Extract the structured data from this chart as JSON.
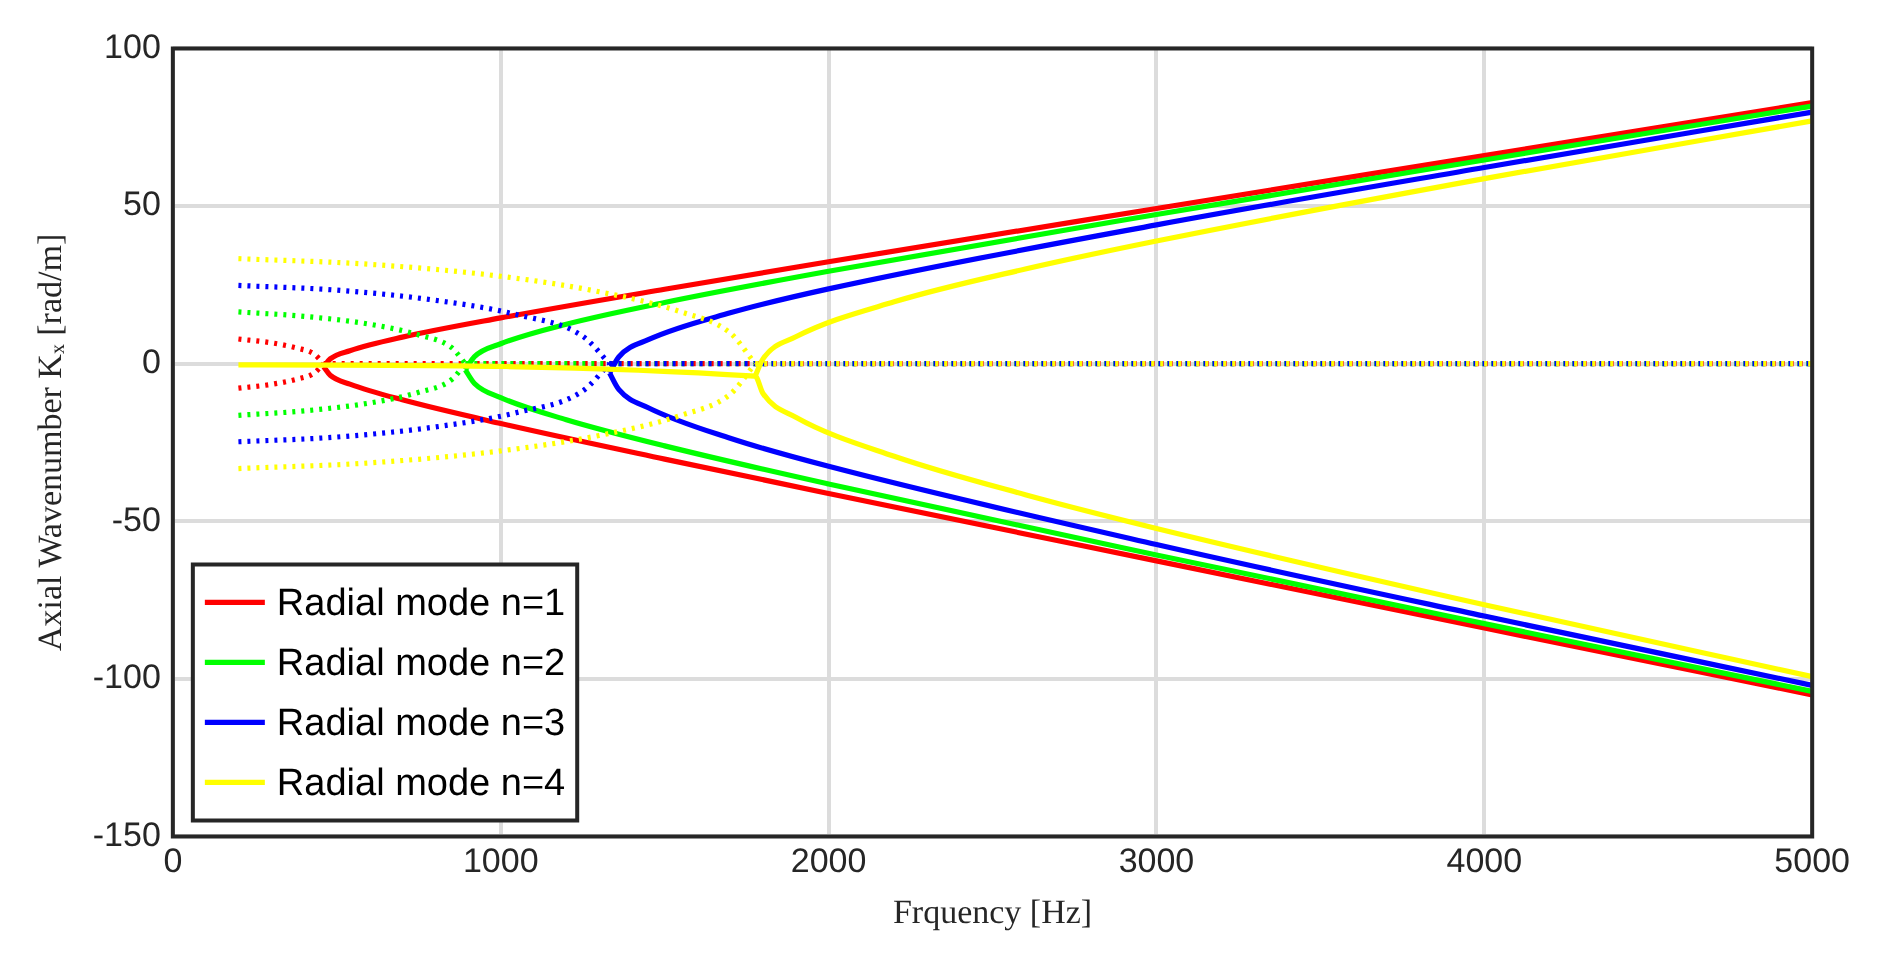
{
  "chart_data": {
    "type": "line",
    "xlabel": "Frquency [Hz]",
    "ylabel": "Axial Wavenumber Kₓ [rad/m]",
    "xlim": [
      0,
      5000
    ],
    "xticks": [
      0,
      1000,
      2000,
      3000,
      4000,
      5000
    ],
    "ylim": [
      -150,
      100
    ],
    "yticks": [
      -150,
      -100,
      -50,
      0,
      50,
      100
    ],
    "grid": true,
    "legend": "bottom left",
    "marker": "none",
    "series": [
      {
        "color": "#ff0000",
        "line_style": "dotted",
        "x": [
          200,
          300,
          380,
          430,
          460
        ],
        "values": [
          7.8,
          6.6,
          4.9,
          3.1,
          0
        ]
      },
      {
        "color": "#ff0000",
        "line_style": "dotted",
        "x": [
          200,
          300,
          380,
          430,
          460
        ],
        "values": [
          -7.8,
          -6.6,
          -4.9,
          -3.1,
          0
        ]
      },
      {
        "color": "#ff0000",
        "line_style": "dotted",
        "x": [
          460,
          5000
        ],
        "values": [
          0,
          0
        ]
      },
      {
        "name": "Radial mode n=1",
        "color": "#ff0000",
        "line_style": "solid",
        "x": [
          460,
          480,
          540,
          700,
          1000,
          1500,
          2000,
          3000,
          4000,
          5000
        ],
        "values": [
          -1.0,
          1.5,
          4.1,
          8.4,
          14.5,
          23.6,
          32.3,
          49.2,
          66.0,
          82.8
        ]
      },
      {
        "color": "#ff0000",
        "line_style": "solid",
        "x": [
          460,
          480,
          540,
          700,
          1000,
          1500,
          2000,
          3000,
          4000,
          5000
        ],
        "values": [
          -1.0,
          -3.7,
          -6.5,
          -11.5,
          -19.0,
          -30.3,
          -41.2,
          -62.6,
          -83.9,
          -105.1
        ]
      },
      {
        "color": "#00ff00",
        "line_style": "dotted",
        "x": [
          200,
          400,
          600,
          750,
          850,
          892
        ],
        "values": [
          16.4,
          15.0,
          12.5,
          9.1,
          5.1,
          0
        ]
      },
      {
        "color": "#00ff00",
        "line_style": "dotted",
        "x": [
          200,
          400,
          600,
          750,
          850,
          892
        ],
        "values": [
          -16.4,
          -15.0,
          -12.5,
          -9.1,
          -5.1,
          0
        ]
      },
      {
        "color": "#00ff00",
        "line_style": "dotted",
        "x": [
          892,
          5000
        ],
        "values": [
          0,
          0
        ]
      },
      {
        "name": "Radial mode n=2",
        "color": "#00ff00",
        "line_style": "solid",
        "x": [
          892,
          920,
          1000,
          1200,
          1500,
          2000,
          3000,
          4000,
          5000
        ],
        "values": [
          -2.0,
          2.2,
          6.3,
          12.5,
          19.4,
          29.3,
          47.3,
          64.6,
          81.7
        ]
      },
      {
        "color": "#00ff00",
        "line_style": "solid",
        "x": [
          892,
          920,
          1000,
          1200,
          1500,
          2000,
          3000,
          4000,
          5000
        ],
        "values": [
          -2.0,
          -6.3,
          -10.8,
          -17.8,
          -26.1,
          -38.2,
          -60.7,
          -82.5,
          -104.0
        ]
      },
      {
        "color": "#0000ff",
        "line_style": "dotted",
        "x": [
          200,
          500,
          800,
          1050,
          1250,
          1332
        ],
        "values": [
          24.8,
          23.3,
          20.1,
          15.5,
          8.7,
          0
        ]
      },
      {
        "color": "#0000ff",
        "line_style": "dotted",
        "x": [
          200,
          500,
          800,
          1050,
          1250,
          1332
        ],
        "values": [
          -24.8,
          -23.3,
          -20.1,
          -15.5,
          -8.7,
          0
        ]
      },
      {
        "color": "#0000ff",
        "line_style": "dotted",
        "x": [
          1332,
          5000
        ],
        "values": [
          0,
          0
        ]
      },
      {
        "name": "Radial mode n=3",
        "color": "#0000ff",
        "line_style": "solid",
        "x": [
          1332,
          1360,
          1450,
          1700,
          2000,
          3000,
          4000,
          5000
        ],
        "values": [
          -3.0,
          2.1,
          7.6,
          16.1,
          23.7,
          44.0,
          62.2,
          79.8
        ]
      },
      {
        "color": "#0000ff",
        "line_style": "solid",
        "x": [
          1332,
          1360,
          1450,
          1700,
          2000,
          3000,
          4000,
          5000
        ],
        "values": [
          -3.0,
          -8.2,
          -14.0,
          -23.7,
          -32.6,
          -57.4,
          -80.1,
          -102.1
        ]
      },
      {
        "color": "#ffff00",
        "line_style": "dotted",
        "x": [
          200,
          600,
          1000,
          1300,
          1550,
          1700,
          1776
        ],
        "values": [
          33.3,
          31.5,
          27.7,
          22.8,
          16.4,
          9.7,
          0
        ]
      },
      {
        "color": "#ffff00",
        "line_style": "dotted",
        "x": [
          200,
          600,
          1000,
          1300,
          1550,
          1700,
          1776
        ],
        "values": [
          -33.3,
          -31.5,
          -27.7,
          -22.8,
          -16.4,
          -9.7,
          0
        ]
      },
      {
        "color": "#ffff00",
        "line_style": "dotted",
        "x": [
          1776,
          5000
        ],
        "values": [
          0,
          0
        ]
      },
      {
        "name": "Radial mode n=4",
        "color": "#ffff00",
        "line_style": "solid",
        "x": [
          1776,
          1800,
          1900,
          2200,
          2600,
          3000,
          4000,
          5000
        ],
        "values": [
          -4.0,
          1.5,
          8.5,
          19.6,
          30.0,
          38.9,
          58.7,
          77.0
        ]
      },
      {
        "color": "#ffff00",
        "line_style": "solid",
        "x": [
          200,
          1776,
          1800,
          1900,
          2200,
          2600,
          3000,
          4000,
          5000
        ],
        "values": [
          -0.4,
          -4.0,
          -9.5,
          -17.0,
          -29.4,
          -41.6,
          -52.3,
          -76.5,
          -99.3
        ]
      }
    ]
  }
}
